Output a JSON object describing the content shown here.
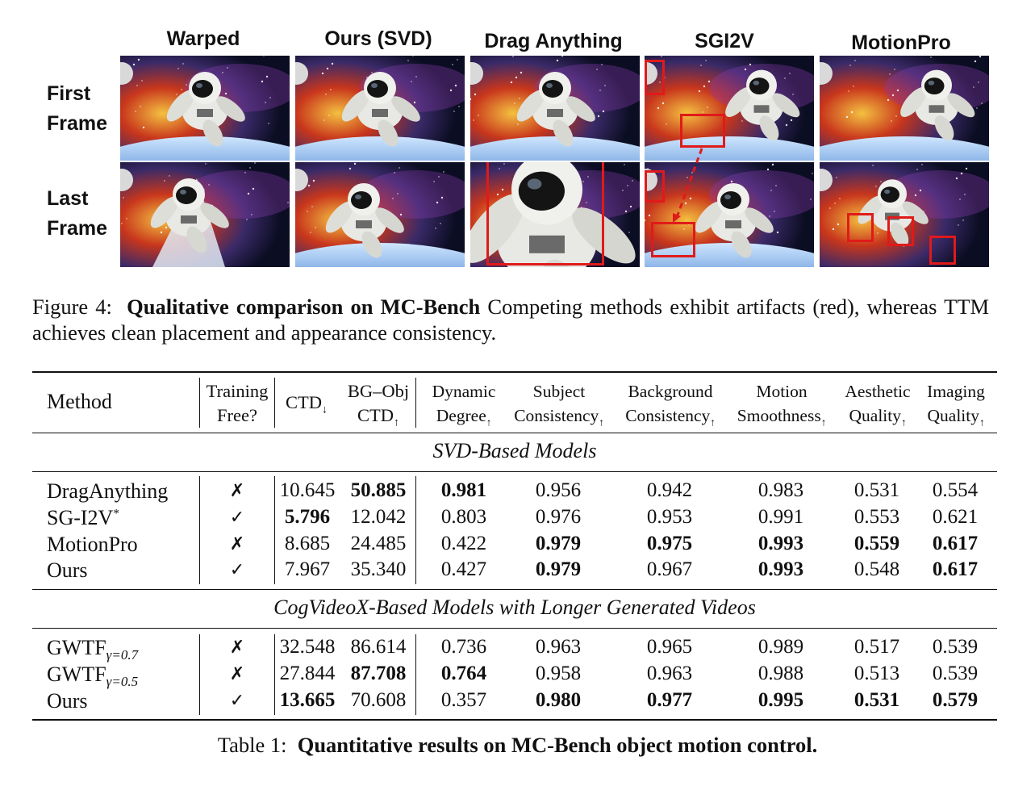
{
  "figure": {
    "columns": [
      "Warped",
      "Ours (SVD)",
      "Drag Anything",
      "SGI2V",
      "MotionPro"
    ],
    "rows": [
      [
        "First",
        "Frame"
      ],
      [
        "Last",
        "Frame"
      ]
    ],
    "caption_label": "Figure 4:",
    "caption_bold": "Qualitative comparison on MC-Bench",
    "caption_text": "Competing methods exhibit artifacts (red), whereas TTM achieves clean placement and appearance consistency.",
    "highlight_color": "#e01a1a"
  },
  "table": {
    "headers": {
      "method": "Method",
      "training_free": [
        "Training",
        "Free?"
      ],
      "ctd": "CTD",
      "ctd_arrow": "↓",
      "bgobj": [
        "BG–Obj",
        "CTD"
      ],
      "bgobj_arrow": "↑",
      "dynamic": [
        "Dynamic",
        "Degree"
      ],
      "subject": [
        "Subject",
        "Consistency"
      ],
      "background": [
        "Background",
        "Consistency"
      ],
      "motion": [
        "Motion",
        "Smoothness"
      ],
      "aesthetic": [
        "Aesthetic",
        "Quality"
      ],
      "imaging": [
        "Imaging",
        "Quality"
      ],
      "up_arrow": "↑"
    },
    "sections": [
      {
        "title": "SVD-Based Models",
        "rows": [
          {
            "method": "DragAnything",
            "sub": "",
            "sup": "",
            "free": "✗",
            "ctd": "10.645",
            "bgobj": "50.885",
            "dyn": "0.981",
            "subj": "0.956",
            "bg": "0.942",
            "mot": "0.983",
            "aes": "0.531",
            "img": "0.554",
            "bold": [
              "bgobj",
              "dyn"
            ]
          },
          {
            "method": "SG-I2V",
            "sub": "",
            "sup": "*",
            "free": "✓",
            "ctd": "5.796",
            "bgobj": "12.042",
            "dyn": "0.803",
            "subj": "0.976",
            "bg": "0.953",
            "mot": "0.991",
            "aes": "0.553",
            "img": "0.621",
            "bold": [
              "ctd"
            ]
          },
          {
            "method": "MotionPro",
            "sub": "",
            "sup": "",
            "free": "✗",
            "ctd": "8.685",
            "bgobj": "24.485",
            "dyn": "0.422",
            "subj": "0.979",
            "bg": "0.975",
            "mot": "0.993",
            "aes": "0.559",
            "img": "0.617",
            "bold": [
              "subj",
              "bg",
              "mot",
              "aes",
              "img"
            ]
          },
          {
            "method": "Ours",
            "sub": "",
            "sup": "",
            "free": "✓",
            "ctd": "7.967",
            "bgobj": "35.340",
            "dyn": "0.427",
            "subj": "0.979",
            "bg": "0.967",
            "mot": "0.993",
            "aes": "0.548",
            "img": "0.617",
            "bold": [
              "subj",
              "mot",
              "img"
            ]
          }
        ]
      },
      {
        "title": "CogVideoX-Based Models with Longer Generated Videos",
        "rows": [
          {
            "method": "GWTF",
            "sub": "γ=0.7",
            "sup": "",
            "free": "✗",
            "ctd": "32.548",
            "bgobj": "86.614",
            "dyn": "0.736",
            "subj": "0.963",
            "bg": "0.965",
            "mot": "0.989",
            "aes": "0.517",
            "img": "0.539",
            "bold": []
          },
          {
            "method": "GWTF",
            "sub": "γ=0.5",
            "sup": "",
            "free": "✗",
            "ctd": "27.844",
            "bgobj": "87.708",
            "dyn": "0.764",
            "subj": "0.958",
            "bg": "0.963",
            "mot": "0.988",
            "aes": "0.513",
            "img": "0.539",
            "bold": [
              "bgobj",
              "dyn"
            ]
          },
          {
            "method": "Ours",
            "sub": "",
            "sup": "",
            "free": "✓",
            "ctd": "13.665",
            "bgobj": "70.608",
            "dyn": "0.357",
            "subj": "0.980",
            "bg": "0.977",
            "mot": "0.995",
            "aes": "0.531",
            "img": "0.579",
            "bold": [
              "ctd",
              "subj",
              "bg",
              "mot",
              "aes",
              "img"
            ]
          }
        ]
      }
    ],
    "caption_label": "Table 1:",
    "caption_bold": "Quantitative results on MC-Bench object motion control."
  }
}
